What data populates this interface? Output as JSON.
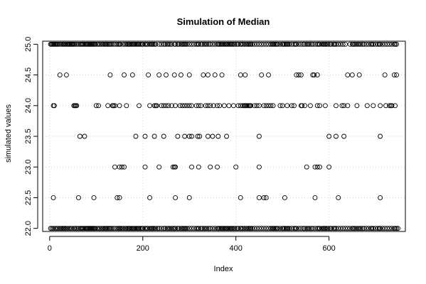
{
  "chart_data": {
    "type": "scatter",
    "title": "Simulation of Median",
    "xlabel": "Index",
    "ylabel": "simulated values",
    "xlim": [
      -15,
      764
    ],
    "ylim": [
      21.95,
      25.05
    ],
    "xticks": [
      0,
      200,
      400,
      600
    ],
    "yticks": [
      22.0,
      22.5,
      23.0,
      23.5,
      24.0,
      24.5,
      25.0
    ],
    "ytick_labels": [
      "22.0",
      "22.5",
      "23.0",
      "23.5",
      "24.0",
      "24.5",
      "25.0"
    ],
    "grid": true,
    "legend": "none",
    "marker": "open-circle",
    "n_points": 750,
    "point_color": "#000000",
    "grid_color": "#d3d3d3",
    "series": [
      {
        "levels": [
          {
            "y": 25.0,
            "x": [
              2,
              4,
              6,
              8,
              10,
              12,
              14,
              16,
              18,
              22,
              25,
              28,
              30,
              32,
              35,
              38,
              40,
              42,
              44,
              46,
              48,
              50,
              52,
              55,
              58,
              62,
              66,
              68,
              70,
              72,
              75,
              78,
              80,
              82,
              84,
              86,
              88,
              90,
              92,
              94,
              96,
              98,
              102,
              105,
              108,
              112,
              115,
              118,
              120,
              122,
              125,
              128,
              130,
              133,
              136,
              140,
              145,
              148,
              150,
              152,
              158,
              162,
              165,
              168,
              170,
              172,
              175,
              178,
              180,
              182,
              185,
              188,
              190,
              192,
              195,
              198,
              200,
              205,
              208,
              210,
              215,
              218,
              220,
              222,
              225,
              228,
              235,
              240,
              245,
              248,
              252,
              255,
              258,
              262,
              268,
              270,
              275,
              278,
              282,
              285,
              288,
              290,
              292,
              295,
              300,
              305,
              310,
              315,
              318,
              320,
              325,
              328,
              332,
              335,
              338,
              342,
              345,
              350,
              355,
              360,
              362,
              365,
              368,
              370,
              372,
              375,
              378,
              380,
              382,
              385,
              388,
              390,
              392,
              395,
              398,
              402,
              405,
              410,
              412,
              415,
              418,
              422,
              425,
              428,
              430,
              432,
              435,
              440,
              445,
              450,
              455,
              460,
              465,
              470,
              475,
              478,
              480,
              482,
              485,
              488,
              490,
              495,
              500,
              502,
              505,
              508,
              510,
              512,
              515,
              520,
              525,
              528,
              530,
              535,
              540,
              545,
              548,
              552,
              555,
              558,
              562,
              565,
              570,
              575,
              578,
              580,
              585,
              588,
              590,
              592,
              595,
              598,
              602,
              605,
              610,
              612,
              615,
              620,
              625,
              630,
              635,
              645,
              650,
              652,
              655,
              658,
              662,
              665,
              668,
              672,
              675,
              680,
              685,
              690,
              692,
              695,
              700,
              705,
              708,
              710,
              715,
              720,
              725,
              730,
              735,
              740,
              742,
              745
            ]
          },
          {
            "y": 24.5,
            "x": [
              22,
              36,
              130,
              160,
              178,
              212,
              235,
              250,
              268,
              282,
              300,
              330,
              340,
              355,
              370,
              410,
              420,
              455,
              470,
              530,
              535,
              540,
              565,
              568,
              575,
              640,
              650,
              665,
              720,
              740,
              745
            ]
          },
          {
            "y": 24.0,
            "x": [
              8,
              10,
              52,
              54,
              56,
              58,
              100,
              105,
              125,
              135,
              137,
              140,
              150,
              165,
              192,
              215,
              225,
              228,
              230,
              240,
              245,
              250,
              255,
              262,
              270,
              280,
              285,
              290,
              295,
              300,
              305,
              315,
              320,
              325,
              335,
              340,
              345,
              352,
              360,
              365,
              375,
              385,
              395,
              405,
              410,
              415,
              418,
              420,
              422,
              425,
              428,
              430,
              432,
              440,
              445,
              450,
              460,
              465,
              470,
              475,
              480,
              495,
              500,
              510,
              520,
              525,
              540,
              542,
              548,
              560,
              575,
              580,
              592,
              615,
              628,
              632,
              640,
              660,
              682,
              695,
              710,
              722,
              730,
              733,
              735,
              742
            ]
          },
          {
            "y": 23.5,
            "x": [
              65,
              75,
              185,
              205,
              225,
              245,
              275,
              290,
              300,
              305,
              318,
              322,
              340,
              350,
              362,
              380,
              450,
              600,
              615,
              632,
              710
            ]
          },
          {
            "y": 23.0,
            "x": [
              140,
              150,
              155,
              160,
              205,
              235,
              265,
              268,
              270,
              305,
              320,
              345,
              360,
              400,
              450,
              552,
              570,
              575,
              580,
              600
            ]
          },
          {
            "y": 22.5,
            "x": [
              8,
              62,
              95,
              145,
              150,
              215,
              270,
              300,
              410,
              450,
              460,
              465,
              505,
              570,
              620,
              710
            ]
          },
          {
            "y": 22.0,
            "x": [
              2,
              5,
              8,
              12,
              15,
              18,
              22,
              25,
              28,
              30,
              32,
              35,
              38,
              42,
              45,
              48,
              52,
              55,
              58,
              62,
              66,
              68,
              70,
              72,
              75,
              78,
              80,
              82,
              84,
              86,
              88,
              90,
              92,
              94,
              96,
              98,
              102,
              105,
              108,
              112,
              115,
              118,
              120,
              122,
              125,
              128,
              130,
              133,
              136,
              140,
              145,
              148,
              150,
              152,
              155,
              158,
              162,
              165,
              168,
              170,
              172,
              175,
              178,
              180,
              182,
              185,
              188,
              190,
              192,
              195,
              198,
              200,
              205,
              208,
              210,
              215,
              218,
              220,
              222,
              225,
              228,
              232,
              235,
              240,
              245,
              248,
              252,
              255,
              258,
              262,
              265,
              268,
              270,
              275,
              278,
              282,
              285,
              288,
              290,
              292,
              295,
              300,
              305,
              310,
              315,
              318,
              320,
              325,
              328,
              332,
              335,
              338,
              342,
              345,
              350,
              355,
              360,
              362,
              365,
              368,
              370,
              372,
              375,
              378,
              380,
              382,
              385,
              388,
              390,
              392,
              395,
              398,
              402,
              405,
              410,
              412,
              415,
              418,
              422,
              425,
              428,
              430,
              432,
              435,
              440,
              445,
              450,
              455,
              460,
              465,
              470,
              475,
              478,
              480,
              482,
              485,
              488,
              490,
              495,
              500,
              502,
              505,
              508,
              510,
              512,
              515,
              520,
              525,
              528,
              530,
              535,
              540,
              545,
              548,
              552,
              555,
              558,
              562,
              565,
              570,
              575,
              578,
              580,
              585,
              588,
              590,
              592,
              595,
              598,
              602,
              605,
              610,
              612,
              615,
              620,
              625,
              630,
              635,
              640,
              645,
              650,
              652,
              655,
              658,
              662,
              665,
              668,
              672,
              675,
              680,
              685,
              690,
              692,
              695,
              700,
              705,
              708,
              710,
              715,
              720,
              725,
              730,
              735,
              740,
              742,
              745,
              748
            ]
          }
        ]
      }
    ]
  }
}
